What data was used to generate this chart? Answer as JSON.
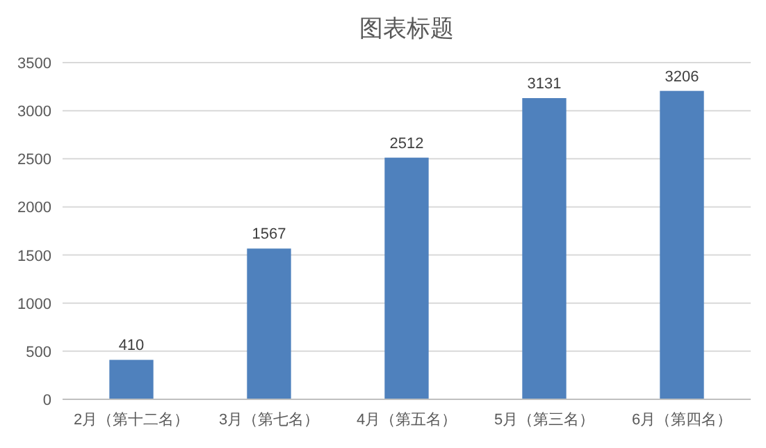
{
  "chart_data": {
    "type": "bar",
    "title": "图表标题",
    "categories": [
      "2月（第十二名）",
      "3月（第七名）",
      "4月（第五名）",
      "5月（第三名）",
      "6月（第四名）"
    ],
    "values": [
      410,
      1567,
      2512,
      3131,
      3206
    ],
    "color": "#4f81bd",
    "ylim": [
      0,
      3500
    ],
    "yticks": [
      0,
      500,
      1000,
      1500,
      2000,
      2500,
      3000,
      3500
    ],
    "grid": "y",
    "data_labels": true
  }
}
